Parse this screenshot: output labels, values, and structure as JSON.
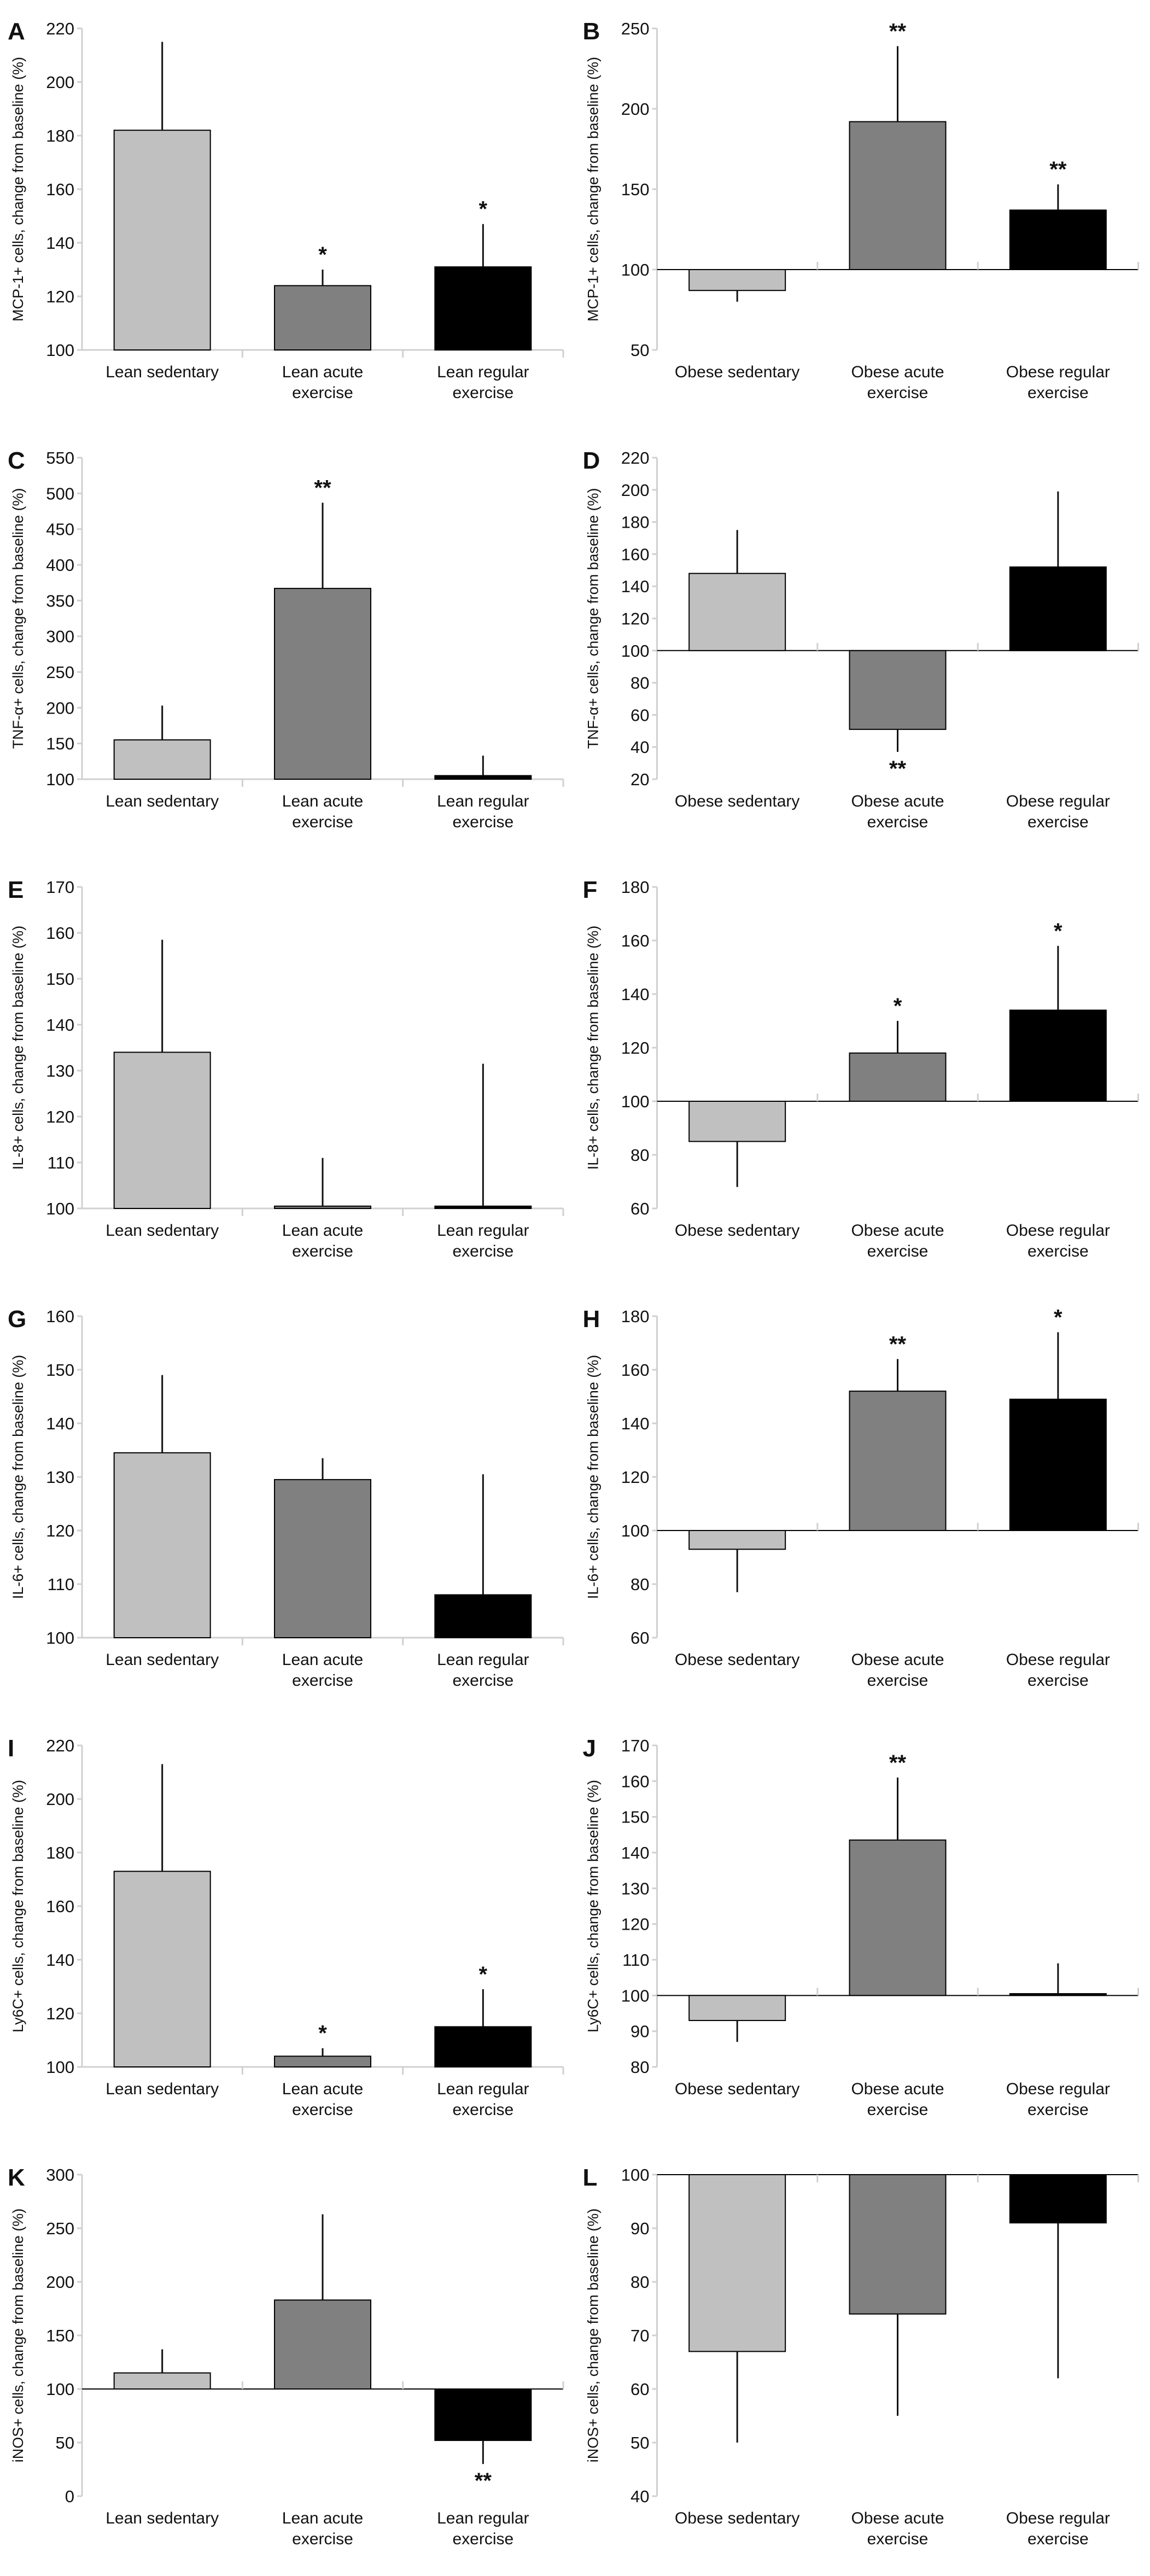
{
  "colors": {
    "sedentary": "#c0c0c0",
    "acute": "#808080",
    "regular": "#000000",
    "axis": "#d0d0d0"
  },
  "chart_data": [
    {
      "type": "bar",
      "panel": "A",
      "ylabel": "MCP-1+ cells, change from baseline (%)",
      "ylim": [
        100,
        220
      ],
      "ystep": 20,
      "baseline": 100,
      "categories": [
        [
          "Lean sedentary"
        ],
        [
          "Lean acute",
          "exercise"
        ],
        [
          "Lean regular",
          "exercise"
        ]
      ],
      "values": [
        182,
        124,
        131
      ],
      "error_ends": [
        215,
        130,
        147
      ],
      "significance": [
        "",
        "*",
        "*"
      ]
    },
    {
      "type": "bar",
      "panel": "B",
      "ylabel": "MCP-1+ cells, change from baseline (%)",
      "ylim": [
        50,
        250
      ],
      "ystep": 50,
      "baseline": 100,
      "categories": [
        [
          "Obese sedentary"
        ],
        [
          "Obese acute",
          "exercise"
        ],
        [
          "Obese regular",
          "exercise"
        ]
      ],
      "values": [
        87,
        192,
        137
      ],
      "error_ends": [
        80,
        239,
        153
      ],
      "significance": [
        "",
        "**",
        "**"
      ]
    },
    {
      "type": "bar",
      "panel": "C",
      "ylabel": "TNF-α+ cells, change from baseline (%)",
      "ylim": [
        100,
        550
      ],
      "ystep": 50,
      "baseline": 100,
      "categories": [
        [
          "Lean sedentary"
        ],
        [
          "Lean acute",
          "exercise"
        ],
        [
          "Lean regular",
          "exercise"
        ]
      ],
      "values": [
        155,
        367,
        105
      ],
      "error_ends": [
        203,
        487,
        133
      ],
      "significance": [
        "",
        "**",
        ""
      ]
    },
    {
      "type": "bar",
      "panel": "D",
      "ylabel": "TNF-α+ cells, change from baseline (%)",
      "ylim": [
        20,
        220
      ],
      "ystep": 20,
      "baseline": 100,
      "categories": [
        [
          "Obese sedentary"
        ],
        [
          "Obese acute",
          "exercise"
        ],
        [
          "Obese regular",
          "exercise"
        ]
      ],
      "values": [
        148,
        51,
        152
      ],
      "error_ends": [
        175,
        37,
        199
      ],
      "significance": [
        "",
        "**",
        ""
      ]
    },
    {
      "type": "bar",
      "panel": "E",
      "ylabel": "IL-8+ cells, change from baseline (%)",
      "ylim": [
        100,
        170
      ],
      "ystep": 10,
      "baseline": 100,
      "categories": [
        [
          "Lean sedentary"
        ],
        [
          "Lean acute",
          "exercise"
        ],
        [
          "Lean regular",
          "exercise"
        ]
      ],
      "values": [
        134,
        100.5,
        100.5
      ],
      "error_ends": [
        158.5,
        111,
        131.5
      ],
      "significance": [
        "",
        "",
        ""
      ]
    },
    {
      "type": "bar",
      "panel": "F",
      "ylabel": "IL-8+ cells, change from baseline (%)",
      "ylim": [
        60,
        180
      ],
      "ystep": 20,
      "baseline": 100,
      "categories": [
        [
          "Obese sedentary"
        ],
        [
          "Obese acute",
          "exercise"
        ],
        [
          "Obese regular",
          "exercise"
        ]
      ],
      "values": [
        85,
        118,
        134
      ],
      "error_ends": [
        68,
        130,
        158
      ],
      "significance": [
        "",
        "*",
        "*"
      ]
    },
    {
      "type": "bar",
      "panel": "G",
      "ylabel": "IL-6+ cells, change from baseline (%)",
      "ylim": [
        100,
        160
      ],
      "ystep": 10,
      "baseline": 100,
      "categories": [
        [
          "Lean sedentary"
        ],
        [
          "Lean acute",
          "exercise"
        ],
        [
          "Lean regular",
          "exercise"
        ]
      ],
      "values": [
        134.5,
        129.5,
        108
      ],
      "error_ends": [
        149,
        133.5,
        130.5
      ],
      "significance": [
        "",
        "",
        ""
      ]
    },
    {
      "type": "bar",
      "panel": "H",
      "ylabel": "IL-6+ cells, change from baseline (%)",
      "ylim": [
        60,
        180
      ],
      "ystep": 20,
      "baseline": 100,
      "categories": [
        [
          "Obese sedentary"
        ],
        [
          "Obese acute",
          "exercise"
        ],
        [
          "Obese regular",
          "exercise"
        ]
      ],
      "values": [
        93,
        152,
        149
      ],
      "error_ends": [
        77,
        164,
        174
      ],
      "significance": [
        "",
        "**",
        "*"
      ]
    },
    {
      "type": "bar",
      "panel": "I",
      "ylabel": "Ly6C+ cells, change from baseline (%)",
      "ylim": [
        100,
        220
      ],
      "ystep": 20,
      "baseline": 100,
      "categories": [
        [
          "Lean sedentary"
        ],
        [
          "Lean acute",
          "exercise"
        ],
        [
          "Lean regular",
          "exercise"
        ]
      ],
      "values": [
        173,
        104,
        115
      ],
      "error_ends": [
        213,
        107,
        129
      ],
      "significance": [
        "",
        "*",
        "*"
      ]
    },
    {
      "type": "bar",
      "panel": "J",
      "ylabel": "Ly6C+ cells, change from baseline (%)",
      "ylim": [
        80,
        170
      ],
      "ystep": 10,
      "baseline": 100,
      "categories": [
        [
          "Obese sedentary"
        ],
        [
          "Obese acute",
          "exercise"
        ],
        [
          "Obese regular",
          "exercise"
        ]
      ],
      "values": [
        93,
        143.5,
        100.5
      ],
      "error_ends": [
        87,
        161,
        109
      ],
      "significance": [
        "",
        "**",
        ""
      ]
    },
    {
      "type": "bar",
      "panel": "K",
      "ylabel": "iNOS+ cells, change from baseline (%)",
      "ylim": [
        0,
        300
      ],
      "ystep": 50,
      "baseline": 100,
      "categories": [
        [
          "Lean sedentary"
        ],
        [
          "Lean acute",
          "exercise"
        ],
        [
          "Lean regular",
          "exercise"
        ]
      ],
      "values": [
        115,
        183,
        52
      ],
      "error_ends": [
        137,
        263,
        30
      ],
      "significance": [
        "",
        "",
        "**"
      ]
    },
    {
      "type": "bar",
      "panel": "L",
      "ylabel": "iNOS+ cells, change from baseline (%)",
      "ylim": [
        40,
        100
      ],
      "ystep": 10,
      "baseline": 100,
      "categories": [
        [
          "Obese sedentary"
        ],
        [
          "Obese acute",
          "exercise"
        ],
        [
          "Obese regular",
          "exercise"
        ]
      ],
      "values": [
        67,
        74,
        91
      ],
      "error_ends": [
        50,
        55,
        62
      ],
      "significance": [
        "",
        "",
        ""
      ]
    }
  ]
}
